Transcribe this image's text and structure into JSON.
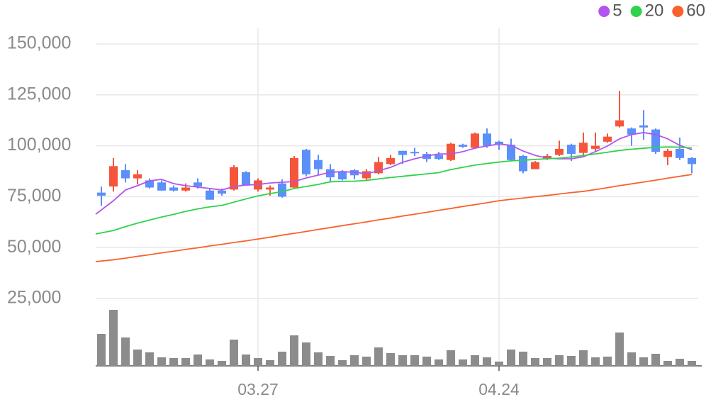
{
  "chart_data": {
    "type": "candlestick",
    "categories": [
      null,
      null,
      null,
      null,
      null,
      null,
      null,
      null,
      null,
      null,
      null,
      null,
      null,
      "03.27",
      null,
      null,
      null,
      null,
      null,
      null,
      null,
      null,
      null,
      null,
      null,
      null,
      null,
      null,
      null,
      null,
      null,
      null,
      null,
      "04.24",
      null,
      null,
      null,
      null,
      null,
      null,
      null,
      null,
      null,
      null,
      null,
      null,
      null,
      null,
      null,
      null
    ],
    "open": [
      77000,
      80000,
      88000,
      84000,
      83000,
      82000,
      79500,
      78000,
      82000,
      78000,
      78000,
      78500,
      87000,
      78500,
      78500,
      81500,
      79500,
      98000,
      93000,
      88500,
      87000,
      88000,
      84000,
      86500,
      91000,
      97500,
      97000,
      96000,
      95500,
      93000,
      100500,
      99000,
      106000,
      102000,
      100500,
      95000,
      88500,
      93500,
      95500,
      100500,
      96500,
      98500,
      102000,
      109500,
      108500,
      110000,
      108000,
      94500,
      98500,
      94000
    ],
    "high": [
      80000,
      94000,
      91000,
      88000,
      84000,
      83000,
      80500,
      81500,
      84000,
      79000,
      79000,
      90500,
      87500,
      84000,
      80500,
      83500,
      95000,
      98500,
      95500,
      91000,
      88000,
      88500,
      88500,
      94500,
      95500,
      97500,
      99000,
      97000,
      97000,
      101500,
      101000,
      106500,
      108500,
      102500,
      103500,
      95500,
      92500,
      96000,
      102500,
      101000,
      106500,
      106500,
      106000,
      127000,
      109000,
      117500,
      108500,
      98500,
      104000,
      94500
    ],
    "low": [
      70500,
      77500,
      82000,
      81000,
      79000,
      78000,
      77500,
      77500,
      79000,
      73500,
      75500,
      78000,
      80500,
      77500,
      75500,
      74500,
      79000,
      85000,
      85500,
      82500,
      83000,
      83500,
      83000,
      86000,
      90500,
      91000,
      95000,
      92000,
      93000,
      92500,
      99000,
      98500,
      99000,
      98000,
      92500,
      86500,
      88500,
      93000,
      95000,
      92500,
      95000,
      97000,
      101500,
      109000,
      100000,
      103000,
      96000,
      90500,
      93000,
      86500
    ],
    "close": [
      75500,
      90000,
      84000,
      86000,
      79500,
      78000,
      78000,
      79500,
      80000,
      73500,
      76500,
      89500,
      80500,
      83000,
      79500,
      75000,
      94000,
      86000,
      88500,
      84500,
      83500,
      85500,
      87500,
      92000,
      94000,
      95500,
      96500,
      93500,
      93500,
      101000,
      99500,
      106000,
      100000,
      100500,
      93000,
      87500,
      92000,
      95000,
      98500,
      96000,
      101500,
      100000,
      104500,
      112500,
      105500,
      109000,
      97000,
      97500,
      94000,
      91000
    ],
    "volume": [
      45,
      79,
      40,
      23,
      19,
      12,
      11,
      11,
      16,
      9,
      7,
      37,
      16,
      11,
      8,
      20,
      43,
      33,
      19,
      14,
      8,
      15,
      13,
      26,
      18,
      15,
      15,
      13,
      9,
      22,
      9,
      15,
      12,
      6,
      23,
      20,
      11,
      11,
      15,
      14,
      22,
      12,
      13,
      47,
      19,
      12,
      17,
      7,
      10,
      7
    ],
    "up_color": "#f5553a",
    "down_color": "#5b8ff9",
    "volume_color": "#8c8c8c",
    "series": [
      {
        "name": "5",
        "color": "#b354ee",
        "values": [
          66400,
          73000,
          78300,
          80400,
          82800,
          83500,
          81400,
          80400,
          79700,
          79000,
          78300,
          80000,
          80700,
          81000,
          81700,
          82100,
          82400,
          84200,
          85600,
          87000,
          87300,
          87000,
          86300,
          87700,
          89400,
          91900,
          93600,
          95000,
          96000,
          96000,
          97100,
          98800,
          99900,
          100900,
          100200,
          97400,
          95300,
          93900,
          93600,
          93600,
          94600,
          97100,
          99900,
          103400,
          105500,
          106500,
          105500,
          103400,
          100200,
          98100
        ]
      },
      {
        "name": "20",
        "color": "#2fd24b",
        "values": [
          56700,
          58400,
          60300,
          62000,
          63500,
          65000,
          66300,
          67800,
          69000,
          70000,
          70700,
          72300,
          73900,
          75400,
          76500,
          77500,
          79000,
          80000,
          81000,
          82300,
          82500,
          82600,
          83000,
          83700,
          84400,
          85000,
          85600,
          86200,
          86800,
          88300,
          89400,
          90500,
          91300,
          92000,
          92600,
          92900,
          93300,
          93600,
          93900,
          94500,
          95200,
          96000,
          96800,
          97700,
          98300,
          98800,
          99200,
          99400,
          99300,
          98900
        ]
      },
      {
        "name": "60",
        "color": "#f8622c",
        "values": [
          43100,
          44000,
          44800,
          45700,
          46500,
          47400,
          48200,
          49100,
          49900,
          50800,
          51600,
          52500,
          53300,
          54200,
          55100,
          56100,
          57000,
          57900,
          58900,
          59800,
          60800,
          61700,
          62600,
          63600,
          64500,
          65500,
          66400,
          67300,
          68300,
          69200,
          70200,
          71100,
          72000,
          73000,
          73700,
          74300,
          75000,
          75600,
          76300,
          77000,
          77600,
          78500,
          79400,
          80400,
          81300,
          82200,
          83100,
          84100,
          85000,
          85900
        ]
      }
    ],
    "ylim": [
      25000,
      150000
    ],
    "yticks": [
      {
        "value": 25000,
        "label": "25,000"
      },
      {
        "value": 50000,
        "label": "50,000"
      },
      {
        "value": 75000,
        "label": "75,000"
      },
      {
        "value": 100000,
        "label": "100,000"
      },
      {
        "value": 125000,
        "label": "125,000"
      },
      {
        "value": 150000,
        "label": "150,000"
      }
    ],
    "grid": true,
    "legend": "top-right"
  }
}
